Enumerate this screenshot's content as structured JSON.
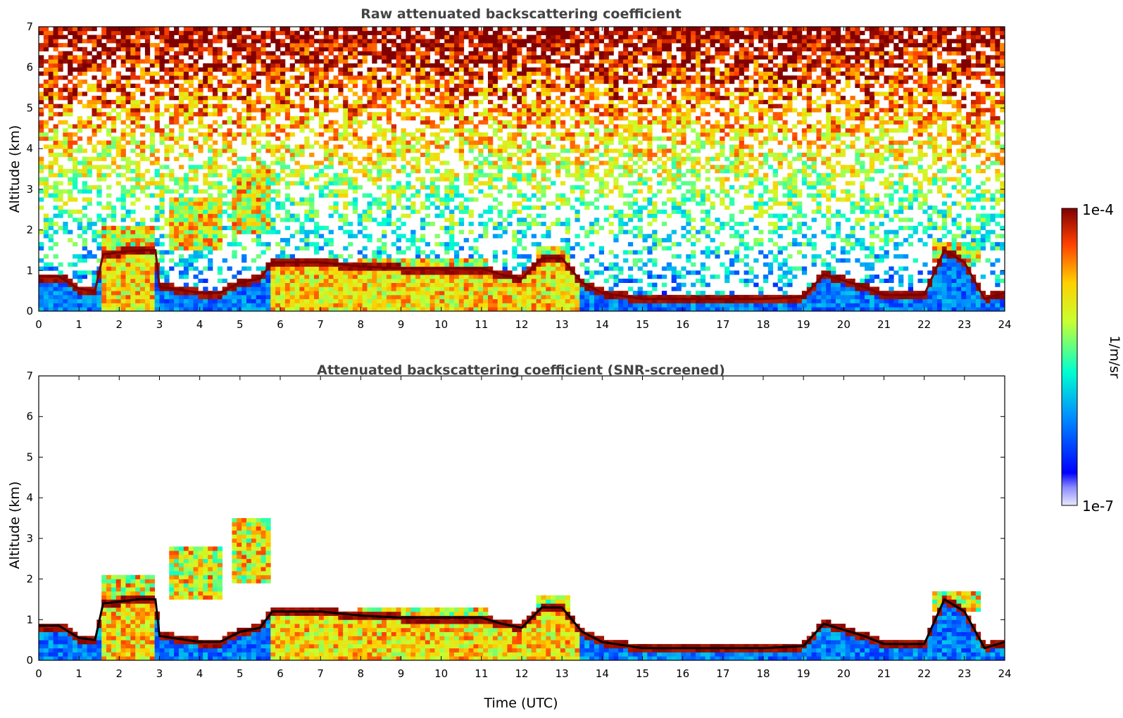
{
  "chart_data": [
    {
      "type": "heatmap",
      "title": "Raw attenuated backscattering coefficient",
      "xlabel": "",
      "ylabel": "Altitude (km)",
      "xlim": [
        0,
        24
      ],
      "ylim": [
        0,
        7
      ],
      "xticks": [
        "0",
        "1",
        "2",
        "3",
        "4",
        "5",
        "6",
        "7",
        "8",
        "9",
        "10",
        "11",
        "12",
        "13",
        "14",
        "15",
        "16",
        "17",
        "18",
        "19",
        "20",
        "21",
        "22",
        "23",
        "24"
      ],
      "yticks": [
        "0",
        "1",
        "2",
        "3",
        "4",
        "5",
        "6",
        "7"
      ],
      "screened": false,
      "colorbar": {
        "min_label": "1e-7",
        "max_label": "1e-4",
        "label": "1/m/sr",
        "scale": "log",
        "colormap": "jet"
      },
      "boundary_layer_top_km": [
        [
          0,
          0.85
        ],
        [
          0.5,
          0.85
        ],
        [
          1,
          0.55
        ],
        [
          1.4,
          0.5
        ],
        [
          1.6,
          1.4
        ],
        [
          2.5,
          1.5
        ],
        [
          2.9,
          1.5
        ],
        [
          3.0,
          0.6
        ],
        [
          4,
          0.45
        ],
        [
          4.5,
          0.45
        ],
        [
          5,
          0.7
        ],
        [
          5.5,
          0.8
        ],
        [
          5.8,
          1.2
        ],
        [
          6,
          1.2
        ],
        [
          7,
          1.2
        ],
        [
          8,
          1.1
        ],
        [
          9,
          1.05
        ],
        [
          10,
          1.05
        ],
        [
          11,
          1.05
        ],
        [
          11.5,
          0.9
        ],
        [
          12,
          0.8
        ],
        [
          12.5,
          1.3
        ],
        [
          13,
          1.3
        ],
        [
          13.5,
          0.7
        ],
        [
          14,
          0.45
        ],
        [
          15,
          0.3
        ],
        [
          16,
          0.3
        ],
        [
          17,
          0.3
        ],
        [
          18,
          0.3
        ],
        [
          19,
          0.35
        ],
        [
          19.5,
          0.9
        ],
        [
          20,
          0.75
        ],
        [
          20.5,
          0.6
        ],
        [
          21,
          0.4
        ],
        [
          22,
          0.4
        ],
        [
          22.5,
          1.5
        ],
        [
          23,
          1.2
        ],
        [
          23.5,
          0.3
        ],
        [
          24,
          0.45
        ]
      ],
      "cloud_features": [
        {
          "time_range": [
            1.6,
            2.9
          ],
          "altitude_range": [
            1.3,
            2.1
          ]
        },
        {
          "time_range": [
            3.2,
            4.6
          ],
          "altitude_range": [
            1.5,
            2.8
          ]
        },
        {
          "time_range": [
            4.8,
            5.8
          ],
          "altitude_range": [
            1.9,
            3.5
          ]
        },
        {
          "time_range": [
            7.9,
            11.1
          ],
          "altitude_range": [
            0.9,
            1.3
          ]
        },
        {
          "time_range": [
            12.3,
            13.2
          ],
          "altitude_range": [
            1.2,
            1.6
          ]
        },
        {
          "time_range": [
            22.2,
            23.4
          ],
          "altitude_range": [
            1.2,
            1.7
          ]
        }
      ]
    },
    {
      "type": "heatmap",
      "title": "Attenuated backscattering coefficient (SNR-screened)",
      "xlabel": "Time (UTC)",
      "ylabel": "Altitude (km)",
      "xlim": [
        0,
        24
      ],
      "ylim": [
        0,
        7
      ],
      "xticks": [
        "0",
        "1",
        "2",
        "3",
        "4",
        "5",
        "6",
        "7",
        "8",
        "9",
        "10",
        "11",
        "12",
        "13",
        "14",
        "15",
        "16",
        "17",
        "18",
        "19",
        "20",
        "21",
        "22",
        "23",
        "24"
      ],
      "yticks": [
        "0",
        "1",
        "2",
        "3",
        "4",
        "5",
        "6",
        "7"
      ],
      "screened": true,
      "colorbar": {
        "min_label": "1e-7",
        "max_label": "1e-4",
        "label": "1/m/sr",
        "scale": "log",
        "colormap": "jet"
      }
    }
  ]
}
